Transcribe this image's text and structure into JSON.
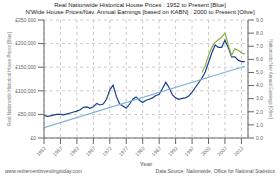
{
  "chart_data": {
    "type": "line",
    "title": "Real Nationwide Historical House Prices : 1952 to Present [Blue]",
    "subtitle": "N'Wide House Prices/Nav. Annual Earnings [based on KABN] : 2000 to Present [Olive]",
    "xlabel": "Year",
    "ylabel": "Real Nationwide Historical House Prices [Blue]",
    "y2label": "Nationwide/Nav Annual Earnings [Olive]",
    "annotations": [
      "www.retirementinvestingtoday.com",
      "Data Source: Nationwide, Office for National Statistics"
    ],
    "grid": true,
    "xlim": [
      1952,
      2014
    ],
    "xticks": [
      1952,
      1957,
      1962,
      1967,
      1972,
      1977,
      1982,
      1987,
      1992,
      1997,
      2002,
      2007,
      2012
    ],
    "ylim": [
      0,
      250000
    ],
    "yticks": [
      {
        "value": 0,
        "label": "£0"
      },
      {
        "value": 50000,
        "label": "£50,000"
      },
      {
        "value": 100000,
        "label": "£100,000"
      },
      {
        "value": 150000,
        "label": "£150,000"
      },
      {
        "value": 200000,
        "label": "£200,000"
      },
      {
        "value": 250000,
        "label": "£250,000"
      }
    ],
    "y2lim": [
      0.0,
      9.0
    ],
    "y2ticks": [
      {
        "value": 0.0,
        "label": "0.0"
      },
      {
        "value": 1.0,
        "label": "1.0"
      },
      {
        "value": 2.0,
        "label": "2.0"
      },
      {
        "value": 3.0,
        "label": "3.0"
      },
      {
        "value": 4.0,
        "label": "4.0"
      },
      {
        "value": 5.0,
        "label": "5.0"
      },
      {
        "value": 6.0,
        "label": "6.0"
      },
      {
        "value": 7.0,
        "label": "7.0"
      },
      {
        "value": 8.0,
        "label": "8.0"
      },
      {
        "value": 9.0,
        "label": "9.0"
      }
    ],
    "series": [
      {
        "color": "#1a3f8f",
        "x": [
          1952,
          1953,
          1954,
          1955,
          1956,
          1957,
          1958,
          1959,
          1960,
          1961,
          1962,
          1963,
          1964,
          1965,
          1966,
          1967,
          1968,
          1969,
          1970,
          1971,
          1972,
          1973,
          1974,
          1975,
          1976,
          1977,
          1978,
          1979,
          1980,
          1981,
          1982,
          1983,
          1984,
          1985,
          1986,
          1987,
          1988,
          1989,
          1990,
          1991,
          1992,
          1993,
          1994,
          1995,
          1996,
          1997,
          1998,
          1999,
          2000,
          2001,
          2002,
          2003,
          2004,
          2005,
          2006,
          2007,
          2008,
          2009,
          2010,
          2011,
          2012,
          2013
        ],
        "values": [
          48000,
          46000,
          47000,
          49000,
          50000,
          50000,
          49000,
          51000,
          53000,
          55000,
          57000,
          60000,
          65000,
          66000,
          63000,
          66000,
          73000,
          70000,
          72000,
          82000,
          102000,
          112000,
          88000,
          72000,
          68000,
          63000,
          72000,
          82000,
          87000,
          80000,
          75000,
          80000,
          82000,
          85000,
          90000,
          92000,
          105000,
          118000,
          107000,
          92000,
          85000,
          82000,
          84000,
          85000,
          89000,
          97000,
          107000,
          117000,
          127000,
          140000,
          160000,
          180000,
          197000,
          192000,
          192000,
          207000,
          192000,
          172000,
          172000,
          165000,
          162000,
          162000
        ]
      },
      {
        "color": "#7fb0d5",
        "x": [
          1952,
          2013
        ],
        "values": [
          22000,
          152000
        ]
      },
      {
        "color": "#8ab040",
        "axis": "y2",
        "x": [
          2000,
          2001,
          2002,
          2003,
          2004,
          2005,
          2006,
          2007,
          2008,
          2009,
          2010,
          2011,
          2012,
          2013
        ],
        "values": [
          5.0,
          5.5,
          6.3,
          6.9,
          7.3,
          7.5,
          7.7,
          8.0,
          7.1,
          6.3,
          6.8,
          6.7,
          6.5,
          6.4
        ]
      }
    ]
  }
}
